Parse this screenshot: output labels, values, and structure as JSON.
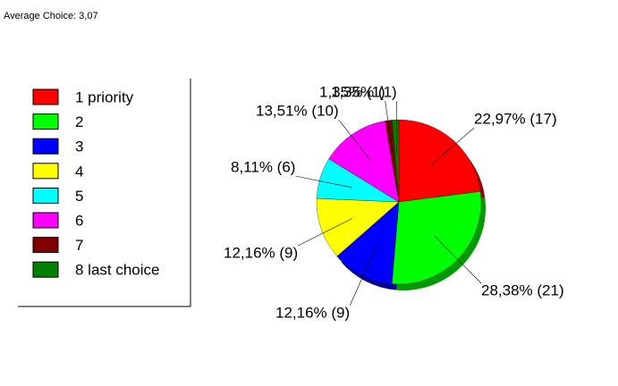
{
  "chart_data": {
    "type": "pie",
    "title": "Average Choice: 3,07",
    "categories": [
      "1 priority",
      "2",
      "3",
      "4",
      "5",
      "6",
      "7",
      "8 last choice"
    ],
    "values": [
      22.97,
      28.38,
      12.16,
      12.16,
      8.11,
      13.51,
      1.35,
      1.35
    ],
    "value_labels": [
      "22,97% (17)",
      "28,38% (21)",
      "12,16% (9)",
      "12,16% (9)",
      "8,11% (6)",
      "13,51% (10)",
      "1,35% (1)",
      "1,35% (1)"
    ],
    "colors": [
      "#ff0000",
      "#00ff00",
      "#0000ff",
      "#ffff00",
      "#00ffff",
      "#ff00ff",
      "#800000",
      "#008000"
    ]
  }
}
